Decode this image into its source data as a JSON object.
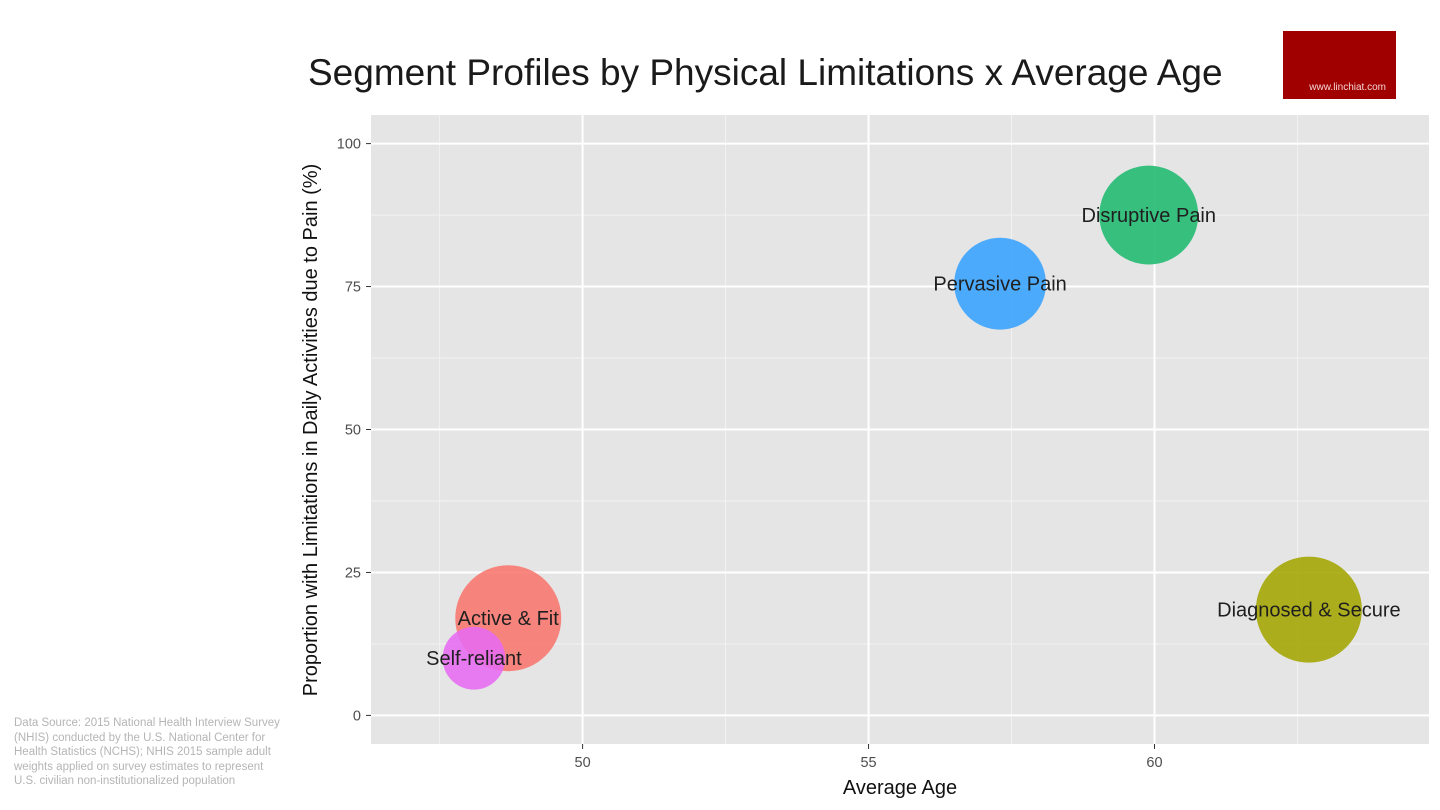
{
  "title": "Segment Profiles by Physical Limitations x Average Age",
  "logo": {
    "text": "www.linchiat.com",
    "color": "#a10000"
  },
  "source_note": "Data Source: 2015 National Health Interview Survey (NHIS) conducted by the U.S. National Center for Health Statistics (NCHS); NHIS 2015 sample adult weights applied on survey estimates to represent  U.S. civilian non-institutionalized population",
  "chart_data": {
    "type": "scatter",
    "title": "Segment Profiles by Physical Limitations x Average Age",
    "xlabel": "Average Age",
    "ylabel": "Proportion with Limitations in Daily Activities due to Pain (%)",
    "xlim": [
      46.3,
      64.8
    ],
    "ylim": [
      -5,
      105
    ],
    "xticks": [
      50,
      55,
      60
    ],
    "yticks": [
      0,
      25,
      50,
      75,
      100
    ],
    "grid": true,
    "background": "#e5e5e5",
    "bubble_size_scale": "relative segment size",
    "points": [
      {
        "name": "Active & Fit",
        "x": 48.7,
        "y": 17,
        "size": 1.0,
        "color": "#f8766d"
      },
      {
        "name": "Self-reliant",
        "x": 48.1,
        "y": 10,
        "size": 0.35,
        "color": "#e76bf3"
      },
      {
        "name": "Pervasive Pain",
        "x": 57.3,
        "y": 75.5,
        "size": 0.75,
        "color": "#35a2ff"
      },
      {
        "name": "Disruptive Pain",
        "x": 59.9,
        "y": 87.5,
        "size": 0.87,
        "color": "#1fb970"
      },
      {
        "name": "Diagnosed & Secure",
        "x": 62.7,
        "y": 18.5,
        "size": 1.0,
        "color": "#a3a500"
      }
    ]
  }
}
